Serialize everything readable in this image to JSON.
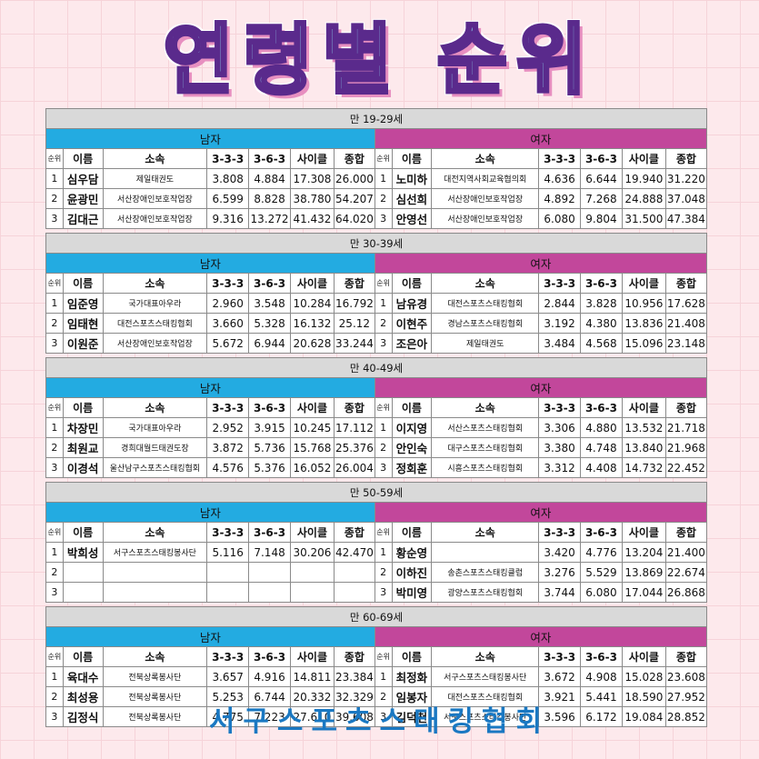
{
  "title": "연령별 순위",
  "footer": "서구스포츠스태킹협회",
  "labels": {
    "men": "남자",
    "women": "여자",
    "headers": [
      "순위",
      "이름",
      "소속",
      "3-3-3",
      "3-6-3",
      "사이클",
      "종합"
    ]
  },
  "sections": [
    {
      "bracket": "만 19-29세",
      "men": [
        {
          "rank": "1",
          "name": "심우담",
          "affiliation": "제일태권도",
          "s333": "3.808",
          "s363": "4.884",
          "cycle": "17.308",
          "total": "26.000"
        },
        {
          "rank": "2",
          "name": "윤광민",
          "affiliation": "서산장애인보호작업장",
          "s333": "6.599",
          "s363": "8.828",
          "cycle": "38.780",
          "total": "54.207"
        },
        {
          "rank": "3",
          "name": "김대근",
          "affiliation": "서산장애인보호작업장",
          "s333": "9.316",
          "s363": "13.272",
          "cycle": "41.432",
          "total": "64.020"
        }
      ],
      "women": [
        {
          "rank": "1",
          "name": "노미하",
          "affiliation": "대전지역사회교육협의회",
          "s333": "4.636",
          "s363": "6.644",
          "cycle": "19.940",
          "total": "31.220"
        },
        {
          "rank": "2",
          "name": "심선희",
          "affiliation": "서산장애인보호작업장",
          "s333": "4.892",
          "s363": "7.268",
          "cycle": "24.888",
          "total": "37.048"
        },
        {
          "rank": "3",
          "name": "안영선",
          "affiliation": "서산장애인보호작업장",
          "s333": "6.080",
          "s363": "9.804",
          "cycle": "31.500",
          "total": "47.384"
        }
      ]
    },
    {
      "bracket": "만 30-39세",
      "men": [
        {
          "rank": "1",
          "name": "임준영",
          "affiliation": "국가대표아우라",
          "s333": "2.960",
          "s363": "3.548",
          "cycle": "10.284",
          "total": "16.792"
        },
        {
          "rank": "2",
          "name": "임태현",
          "affiliation": "대전스포츠스태킹협회",
          "s333": "3.660",
          "s363": "5.328",
          "cycle": "16.132",
          "total": "25.12"
        },
        {
          "rank": "3",
          "name": "이원준",
          "affiliation": "서산장애인보호작업장",
          "s333": "5.672",
          "s363": "6.944",
          "cycle": "20.628",
          "total": "33.244"
        }
      ],
      "women": [
        {
          "rank": "1",
          "name": "남유경",
          "affiliation": "대전스포츠스태킹협회",
          "s333": "2.844",
          "s363": "3.828",
          "cycle": "10.956",
          "total": "17.628"
        },
        {
          "rank": "2",
          "name": "이현주",
          "affiliation": "경남스포츠스태킹협회",
          "s333": "3.192",
          "s363": "4.380",
          "cycle": "13.836",
          "total": "21.408"
        },
        {
          "rank": "3",
          "name": "조은아",
          "affiliation": "제일태권도",
          "s333": "3.484",
          "s363": "4.568",
          "cycle": "15.096",
          "total": "23.148"
        }
      ]
    },
    {
      "bracket": "만 40-49세",
      "men": [
        {
          "rank": "1",
          "name": "차장민",
          "affiliation": "국가대표아우라",
          "s333": "2.952",
          "s363": "3.915",
          "cycle": "10.245",
          "total": "17.112"
        },
        {
          "rank": "2",
          "name": "최원교",
          "affiliation": "경희대월드태권도장",
          "s333": "3.872",
          "s363": "5.736",
          "cycle": "15.768",
          "total": "25.376"
        },
        {
          "rank": "3",
          "name": "이경석",
          "affiliation": "울산남구스포츠스태킹협회",
          "s333": "4.576",
          "s363": "5.376",
          "cycle": "16.052",
          "total": "26.004"
        }
      ],
      "women": [
        {
          "rank": "1",
          "name": "이지영",
          "affiliation": "서산스포츠스태킹협회",
          "s333": "3.306",
          "s363": "4.880",
          "cycle": "13.532",
          "total": "21.718"
        },
        {
          "rank": "2",
          "name": "안인숙",
          "affiliation": "대구스포츠스태킹협회",
          "s333": "3.380",
          "s363": "4.748",
          "cycle": "13.840",
          "total": "21.968"
        },
        {
          "rank": "3",
          "name": "정회훈",
          "affiliation": "시흥스포츠스태킹협회",
          "s333": "3.312",
          "s363": "4.408",
          "cycle": "14.732",
          "total": "22.452"
        }
      ]
    },
    {
      "bracket": "만 50-59세",
      "men": [
        {
          "rank": "1",
          "name": "박희성",
          "affiliation": "서구스포츠스태킹봉사단",
          "s333": "5.116",
          "s363": "7.148",
          "cycle": "30.206",
          "total": "42.470"
        },
        {
          "rank": "2",
          "name": "",
          "affiliation": "",
          "s333": "",
          "s363": "",
          "cycle": "",
          "total": ""
        },
        {
          "rank": "3",
          "name": "",
          "affiliation": "",
          "s333": "",
          "s363": "",
          "cycle": "",
          "total": ""
        }
      ],
      "women": [
        {
          "rank": "1",
          "name": "황순영",
          "affiliation": "",
          "s333": "3.420",
          "s363": "4.776",
          "cycle": "13.204",
          "total": "21.400"
        },
        {
          "rank": "2",
          "name": "이하진",
          "affiliation": "송촌스포츠스태킹클럽",
          "s333": "3.276",
          "s363": "5.529",
          "cycle": "13.869",
          "total": "22.674"
        },
        {
          "rank": "3",
          "name": "박미영",
          "affiliation": "광양스포츠스태킹협회",
          "s333": "3.744",
          "s363": "6.080",
          "cycle": "17.044",
          "total": "26.868"
        }
      ]
    },
    {
      "bracket": "만 60-69세",
      "men": [
        {
          "rank": "1",
          "name": "육대수",
          "affiliation": "전북상록봉사단",
          "s333": "3.657",
          "s363": "4.916",
          "cycle": "14.811",
          "total": "23.384"
        },
        {
          "rank": "2",
          "name": "최성용",
          "affiliation": "전북상록봉사단",
          "s333": "5.253",
          "s363": "6.744",
          "cycle": "20.332",
          "total": "32.329"
        },
        {
          "rank": "3",
          "name": "김정식",
          "affiliation": "전북상록봉사단",
          "s333": "4.775",
          "s363": "7.223",
          "cycle": "27.610",
          "total": "39.608"
        }
      ],
      "women": [
        {
          "rank": "1",
          "name": "최정화",
          "affiliation": "서구스포츠스태킹봉사단",
          "s333": "3.672",
          "s363": "4.908",
          "cycle": "15.028",
          "total": "23.608"
        },
        {
          "rank": "2",
          "name": "임봉자",
          "affiliation": "대전스포츠스태킹협회",
          "s333": "3.921",
          "s363": "5.441",
          "cycle": "18.590",
          "total": "27.952"
        },
        {
          "rank": "3",
          "name": "김덕천",
          "affiliation": "서구스포츠스태킹봉사단",
          "s333": "3.596",
          "s363": "6.172",
          "cycle": "19.084",
          "total": "28.852"
        }
      ]
    }
  ]
}
